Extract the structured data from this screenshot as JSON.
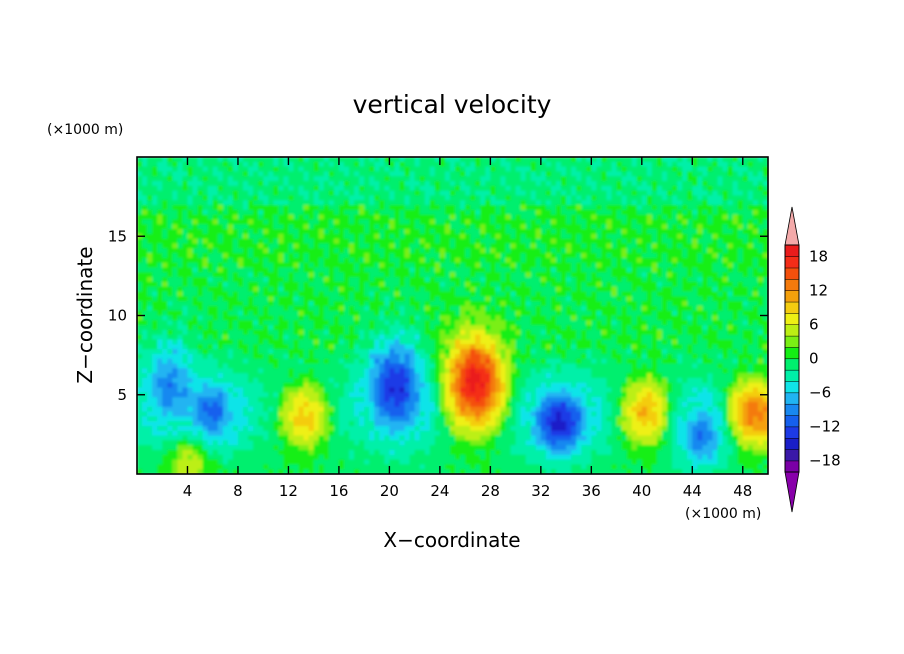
{
  "chart_data": {
    "type": "heatmap",
    "title": "vertical velocity",
    "xlabel": "X−coordinate",
    "ylabel": "Z−coordinate",
    "x_unit_label": "(×1000 m)",
    "y_unit_label": "(×1000 m)",
    "xlim": [
      0,
      50
    ],
    "ylim": [
      0,
      20
    ],
    "x_ticks": [
      "4",
      "8",
      "12",
      "16",
      "20",
      "24",
      "28",
      "32",
      "36",
      "40",
      "44",
      "48"
    ],
    "y_ticks": [
      "5",
      "10",
      "15"
    ],
    "x_tick_values": [
      4,
      8,
      12,
      16,
      20,
      24,
      28,
      32,
      36,
      40,
      44,
      48
    ],
    "y_tick_values": [
      5,
      10,
      15
    ],
    "colorbar": {
      "tick_labels": [
        "18",
        "12",
        "6",
        "0",
        "−6",
        "−12",
        "−18"
      ],
      "tick_values": [
        18,
        12,
        6,
        0,
        -6,
        -12,
        -18
      ],
      "levels": [
        -20,
        -18,
        -16,
        -14,
        -12,
        -10,
        -8,
        -6,
        -4,
        -2,
        0,
        2,
        4,
        6,
        8,
        10,
        12,
        14,
        16,
        18,
        20
      ],
      "colors": [
        "#7a00a6",
        "#3a18a8",
        "#1a1ec8",
        "#1d3ae6",
        "#1560ee",
        "#1888f0",
        "#20b4f2",
        "#10e4e8",
        "#00f0a8",
        "#00ef6e",
        "#14ef14",
        "#7aef14",
        "#bcef14",
        "#eef014",
        "#f4cc10",
        "#f4a00c",
        "#f47a0c",
        "#f4500c",
        "#f42d18",
        "#ea1c1c"
      ],
      "over_color": "#f4aaaa",
      "under_color": "#8800aa"
    },
    "cells": [
      {
        "x": 2.5,
        "z": 5.5,
        "w": -9
      },
      {
        "x": 6,
        "z": 3.8,
        "w": -11
      },
      {
        "x": 4.2,
        "z": 1.0,
        "w": 6
      },
      {
        "x": 13.3,
        "z": 3.6,
        "w": 9
      },
      {
        "x": 20.5,
        "z": 5.4,
        "w": -14
      },
      {
        "x": 26.8,
        "z": 5.8,
        "w": 19
      },
      {
        "x": 33.5,
        "z": 3.3,
        "w": -15
      },
      {
        "x": 40.3,
        "z": 3.9,
        "w": 10
      },
      {
        "x": 44.8,
        "z": 2.5,
        "w": -10
      },
      {
        "x": 49,
        "z": 3.8,
        "w": 13
      }
    ]
  }
}
